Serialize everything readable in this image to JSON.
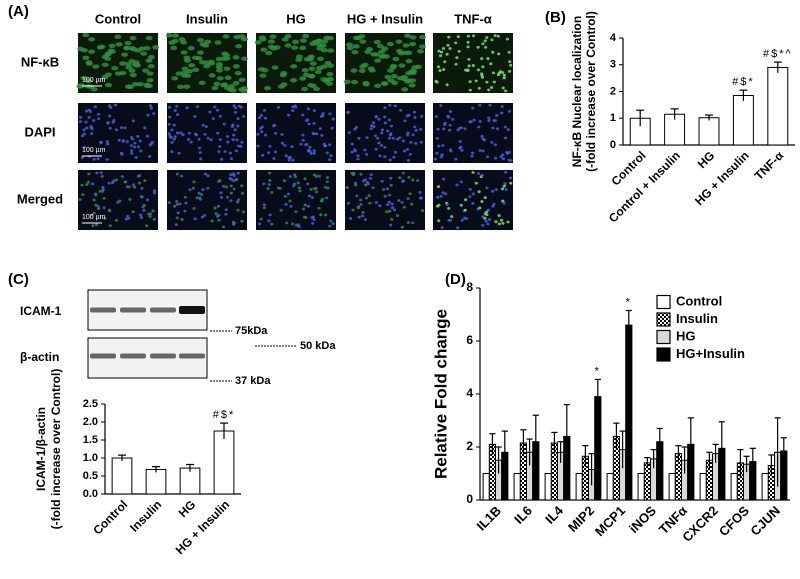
{
  "panel_a": {
    "panel": "(A)",
    "columns": [
      "Control",
      "Insulin",
      "HG",
      "HG + Insulin",
      "TNF-α"
    ],
    "rows": [
      "NF-κB",
      "DAPI",
      "Merged"
    ],
    "scale_bar": "100 µm"
  },
  "blot": {
    "panel": "(C)",
    "bands": [
      "ICAM-1",
      "β-actin"
    ],
    "markers": [
      "75kDa",
      "50 kDa",
      "37 kDa"
    ]
  },
  "chart_data": [
    {
      "type": "bar",
      "panel": "(B)",
      "ylabel": [
        "NF-κB Nuclear localization",
        "(-fold increase over Control)"
      ],
      "categories": [
        "Control",
        "Control + Insulin",
        "HG",
        "HG + Insulin",
        "TNF-α"
      ],
      "values": [
        1.0,
        1.15,
        1.02,
        1.85,
        2.9
      ],
      "errors": [
        0.3,
        0.2,
        0.1,
        0.2,
        0.2
      ],
      "annotations": [
        null,
        null,
        null,
        "#$*",
        "#$*^"
      ],
      "color": "#ffffff",
      "ylim": [
        0,
        4
      ],
      "yticks": [
        0,
        1,
        2,
        3,
        4
      ],
      "grid": false
    },
    {
      "type": "bar",
      "ylabel": [
        "ICAM-1/β-actin",
        "(-fold increase over Control)"
      ],
      "categories": [
        "Control",
        "Insulin",
        "HG",
        "HG + Insulin"
      ],
      "values": [
        1.0,
        0.68,
        0.72,
        1.75
      ],
      "errors": [
        0.08,
        0.08,
        0.1,
        0.22
      ],
      "annotations": [
        null,
        null,
        null,
        "#$*"
      ],
      "color": "#ffffff",
      "ylim": [
        0,
        2.5
      ],
      "yticks": [
        {
          "value": 0,
          "label": "0.0"
        },
        0.5,
        {
          "value": 1,
          "label": "1.0"
        },
        1.5,
        {
          "value": 2,
          "label": "2.0"
        },
        2.5
      ],
      "grid": false
    },
    {
      "type": "bar",
      "panel": "(D)",
      "ylabel": [
        "Relative Fold change"
      ],
      "categories": [
        "IL1B",
        "IL6",
        "IL4",
        "MIP2",
        "MCP1",
        "iNOS",
        "TNFα",
        "CXCR2",
        "CFOS",
        "CJUN"
      ],
      "series": [
        {
          "name": "Control",
          "color": "#ffffff",
          "values": [
            1,
            1,
            1,
            1,
            1,
            1,
            1,
            1,
            1,
            1
          ]
        },
        {
          "name": "Insulin",
          "color": "#ffffff",
          "pattern": "checker",
          "values": [
            2.1,
            2.15,
            2.15,
            1.65,
            2.4,
            1.4,
            1.75,
            1.5,
            1.4,
            1.3
          ],
          "errors": [
            0.4,
            0.5,
            0.4,
            0.4,
            0.5,
            0.2,
            0.3,
            0.3,
            0.5,
            0.4
          ]
        },
        {
          "name": "HG",
          "color": "#d9d9d9",
          "values": [
            1.5,
            1.8,
            1.8,
            1.15,
            1.9,
            1.55,
            1.5,
            1.75,
            1.35,
            1.8
          ],
          "errors": [
            0.5,
            0.5,
            0.4,
            0.6,
            0.7,
            0.35,
            0.5,
            0.35,
            0.3,
            1.3
          ]
        },
        {
          "name": "HG+Insulin",
          "color": "#000000",
          "values": [
            1.8,
            2.2,
            2.4,
            3.9,
            6.6,
            2.2,
            2.1,
            1.95,
            1.45,
            1.85
          ],
          "errors": [
            0.8,
            1.0,
            1.2,
            0.65,
            0.55,
            0.5,
            1.0,
            1.0,
            0.5,
            0.5
          ],
          "annotations": [
            null,
            null,
            null,
            "*",
            "*",
            null,
            null,
            null,
            null,
            null
          ]
        }
      ],
      "ylim": [
        0,
        8
      ],
      "yticks": [
        0,
        2,
        4,
        6,
        8
      ],
      "grid": false,
      "legend": "top-right"
    }
  ]
}
